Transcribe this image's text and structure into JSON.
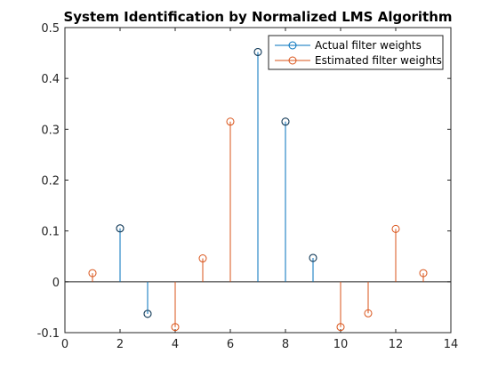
{
  "chart_data": {
    "type": "stem",
    "title": "System Identification by Normalized LMS Algorithm",
    "xlabel": "",
    "ylabel": "",
    "xlim": [
      0,
      14
    ],
    "ylim": [
      -0.1,
      0.5
    ],
    "x_ticks": [
      "0",
      "2",
      "4",
      "6",
      "8",
      "10",
      "12",
      "14"
    ],
    "y_ticks": [
      "-0.1",
      "0",
      "0.1",
      "0.2",
      "0.3",
      "0.4",
      "0.5"
    ],
    "grid": false,
    "legend_position": "top-right",
    "x": [
      1,
      2,
      3,
      4,
      5,
      6,
      7,
      8,
      9,
      10,
      11,
      12,
      13
    ],
    "series": [
      {
        "name": "Actual filter weights",
        "color": "#0072BD",
        "marker": "circle",
        "x": [
          2,
          3,
          7,
          8,
          9
        ],
        "values": [
          0.105,
          -0.063,
          0.452,
          0.315,
          0.047
        ]
      },
      {
        "name": "Estimated filter weights",
        "color": "#D95319",
        "marker": "circle",
        "values": [
          0.017,
          0.105,
          -0.063,
          -0.089,
          0.046,
          0.315,
          0.452,
          0.315,
          0.047,
          -0.089,
          -0.062,
          0.104,
          0.017
        ]
      }
    ]
  }
}
